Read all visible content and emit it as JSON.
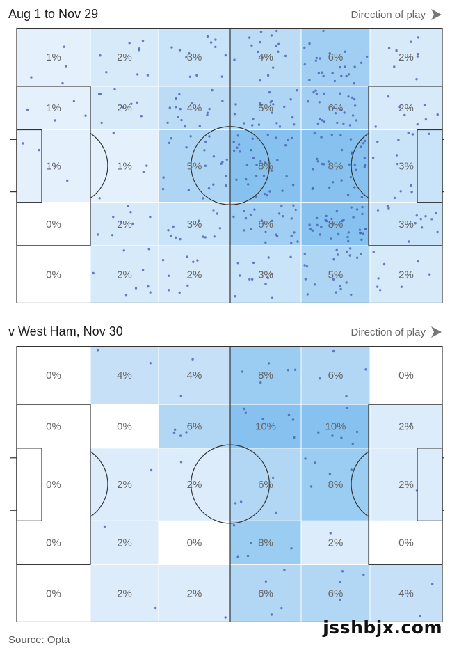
{
  "source": "Source: Opta",
  "watermark": "jsshbjx.com",
  "colors": {
    "zone_scale_max": "#86c1ef",
    "dot": "#4a5fb0",
    "lines": "#333333",
    "label": "#666666",
    "arrow": "#777777"
  },
  "chart_data": [
    {
      "type": "heatmap",
      "title": "Aug 1 to Nov 29",
      "direction_label": "Direction of play",
      "rows": [
        [
          "1%",
          "2%",
          "3%",
          "4%",
          "6%",
          "2%"
        ],
        [
          "1%",
          "2%",
          "4%",
          "5%",
          "6%",
          "2%"
        ],
        [
          "1%",
          "1%",
          "5%",
          "8%",
          "8%",
          "3%"
        ],
        [
          "0%",
          "2%",
          "3%",
          "6%",
          "8%",
          "3%"
        ],
        [
          "0%",
          "2%",
          "2%",
          "3%",
          "5%",
          "2%"
        ]
      ],
      "max_value": 8,
      "dot_density_per_percent": 4
    },
    {
      "type": "heatmap",
      "title": "v West Ham, Nov 30",
      "direction_label": "Direction of play",
      "rows": [
        [
          "0%",
          "4%",
          "4%",
          "8%",
          "6%",
          "0%"
        ],
        [
          "0%",
          "0%",
          "6%",
          "10%",
          "10%",
          "2%"
        ],
        [
          "0%",
          "2%",
          "2%",
          "6%",
          "8%",
          "2%"
        ],
        [
          "0%",
          "2%",
          "0%",
          "8%",
          "2%",
          "0%"
        ],
        [
          "0%",
          "2%",
          "2%",
          "6%",
          "6%",
          "4%"
        ]
      ],
      "max_value": 10,
      "dot_density_per_percent": 0.6
    }
  ]
}
